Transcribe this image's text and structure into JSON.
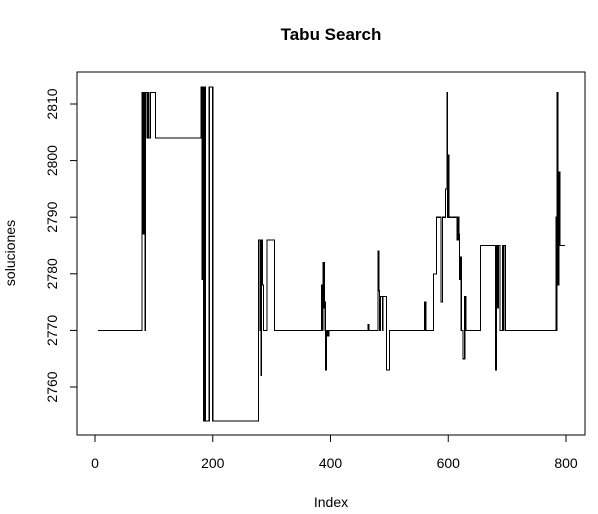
{
  "chart_data": {
    "type": "line",
    "title": "Tabu Search",
    "xlabel": "Index",
    "ylabel": "soluciones",
    "xlim": [
      0,
      800
    ],
    "ylim": [
      2752,
      2815
    ],
    "x_ticks": [
      0,
      200,
      400,
      600,
      800
    ],
    "y_ticks": [
      2760,
      2770,
      2780,
      2790,
      2800,
      2810
    ],
    "grid": false,
    "line_color": "#000000",
    "step": true,
    "series": [
      {
        "x": [
          5,
          80,
          82,
          84,
          85,
          86,
          88,
          90,
          92,
          94,
          98,
          103,
          180,
          182,
          183,
          184,
          186,
          188,
          194,
          200,
          278,
          280,
          281,
          282,
          283,
          284,
          286,
          288,
          290,
          292,
          300,
          305,
          385,
          386,
          387,
          388,
          389,
          390,
          391,
          392,
          393,
          395,
          397,
          398,
          400,
          464,
          465,
          467,
          470,
          481,
          482,
          483,
          484,
          485,
          488,
          489,
          495,
          498,
          500,
          506,
          560,
          562,
          564,
          575,
          580,
          588,
          590,
          595,
          598,
          599,
          600,
          601,
          605,
          615,
          617,
          618,
          619,
          620,
          622,
          624,
          625,
          628,
          630,
          633,
          635,
          640,
          655,
          660,
          680,
          682,
          683,
          685,
          688,
          690,
          692,
          694,
          695,
          697,
          700,
          783,
          784,
          785,
          786,
          788,
          790,
          798
        ],
        "y": [
          2770,
          2812,
          2787,
          2812,
          2770,
          2812,
          2804,
          2812,
          2804,
          2812,
          2812,
          2804,
          2813,
          2779,
          2813,
          2754,
          2813,
          2754,
          2813,
          2754,
          2786,
          2770,
          2786,
          2762,
          2786,
          2778,
          2770,
          2770,
          2770,
          2786,
          2786,
          2770,
          2778,
          2770,
          2782,
          2774,
          2782,
          2775,
          2770,
          2763,
          2770,
          2769,
          2770,
          2770,
          2770,
          2771,
          2770,
          2770,
          2770,
          2784,
          2777,
          2770,
          2770,
          2776,
          2770,
          2776,
          2763,
          2763,
          2770,
          2770,
          2775,
          2770,
          2770,
          2780,
          2790,
          2775,
          2790,
          2795,
          2812,
          2790,
          2801,
          2790,
          2790,
          2786,
          2790,
          2787,
          2779,
          2783,
          2770,
          2770,
          2765,
          2776,
          2770,
          2770,
          2770,
          2770,
          2785,
          2785,
          2763,
          2785,
          2774,
          2785,
          2770,
          2770,
          2785,
          2770,
          2785,
          2770,
          2770,
          2790,
          2770,
          2812,
          2778,
          2798,
          2785,
          2785
        ]
      }
    ]
  }
}
